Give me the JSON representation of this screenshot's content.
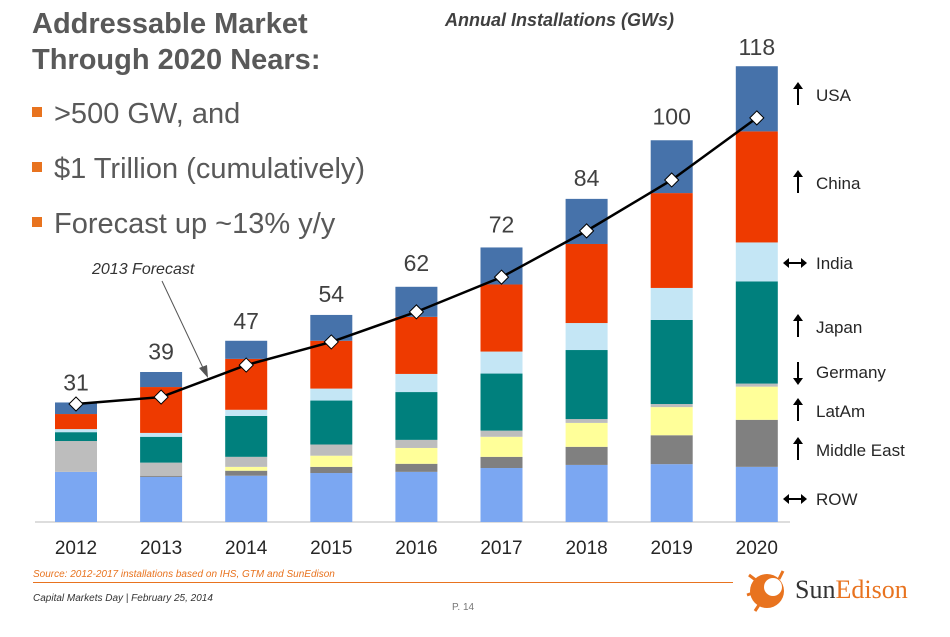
{
  "heading": {
    "line1": "Addressable Market",
    "line2": "Through 2020 Nears:"
  },
  "bullets": [
    ">500 GW, and",
    "$1 Trillion (cumulatively)",
    "Forecast up ~13% y/y"
  ],
  "footer": {
    "source": "Source: 2012-2017 installations based on IHS, GTM and SunEdison",
    "event": "Capital Markets Day | February 25, 2014",
    "page": "P. 14",
    "logo": "SunEdison"
  },
  "colors": {
    "accent": "#E8731F",
    "line": "#000000"
  },
  "chart_data": {
    "type": "bar",
    "stacked": true,
    "title": "Annual Installations (GWs)",
    "categories": [
      "2012",
      "2013",
      "2014",
      "2015",
      "2016",
      "2017",
      "2018",
      "2019",
      "2020"
    ],
    "totals": [
      31,
      39,
      47,
      54,
      62,
      72,
      84,
      100,
      118
    ],
    "ylim": [
      0,
      120
    ],
    "grid": false,
    "series": [
      {
        "name": "ROW",
        "trend": "both",
        "color": "#7BA7F2",
        "values": [
          13,
          11.7,
          12,
          12.7,
          13,
          14,
          14.8,
          15,
          14.3
        ]
      },
      {
        "name": "Middle East",
        "trend": "up",
        "color": "#808080",
        "values": [
          0,
          0.3,
          1.3,
          1.6,
          2.1,
          2.9,
          4.7,
          7.5,
          12.2
        ]
      },
      {
        "name": "LatAm",
        "trend": "up",
        "color": "#FFFF99",
        "values": [
          0,
          0,
          1,
          2.9,
          4.1,
          5.2,
          6.2,
          7.3,
          8.6
        ]
      },
      {
        "name": "Germany",
        "trend": "down",
        "color": "#BDBDBD",
        "values": [
          8,
          3.4,
          2.6,
          2.9,
          2.1,
          1.6,
          1,
          0.8,
          0.8
        ]
      },
      {
        "name": "Japan",
        "trend": "up",
        "color": "#00807D",
        "values": [
          2.3,
          6.7,
          10.6,
          11.4,
          12.4,
          14.8,
          17.9,
          21.8,
          26.5
        ]
      },
      {
        "name": "India",
        "trend": "both",
        "color": "#C4E6F5",
        "values": [
          0.8,
          1,
          1.6,
          3.1,
          4.7,
          5.7,
          7,
          8.3,
          10.1
        ]
      },
      {
        "name": "China",
        "trend": "up",
        "color": "#EE3A00",
        "values": [
          3.9,
          11.9,
          13.2,
          12.4,
          14.8,
          17.4,
          20.5,
          24.6,
          28.8
        ]
      },
      {
        "name": "USA",
        "trend": "up",
        "color": "#4672AA",
        "values": [
          3,
          3.9,
          4.7,
          6.7,
          7.8,
          9.6,
          11.7,
          13.7,
          16.9
        ]
      }
    ],
    "forecast_line": {
      "label": "2013 Forecast",
      "values": [
        30.6,
        32.4,
        40.7,
        46.7,
        54.5,
        63.5,
        75.5,
        88.7,
        104.8
      ]
    }
  }
}
